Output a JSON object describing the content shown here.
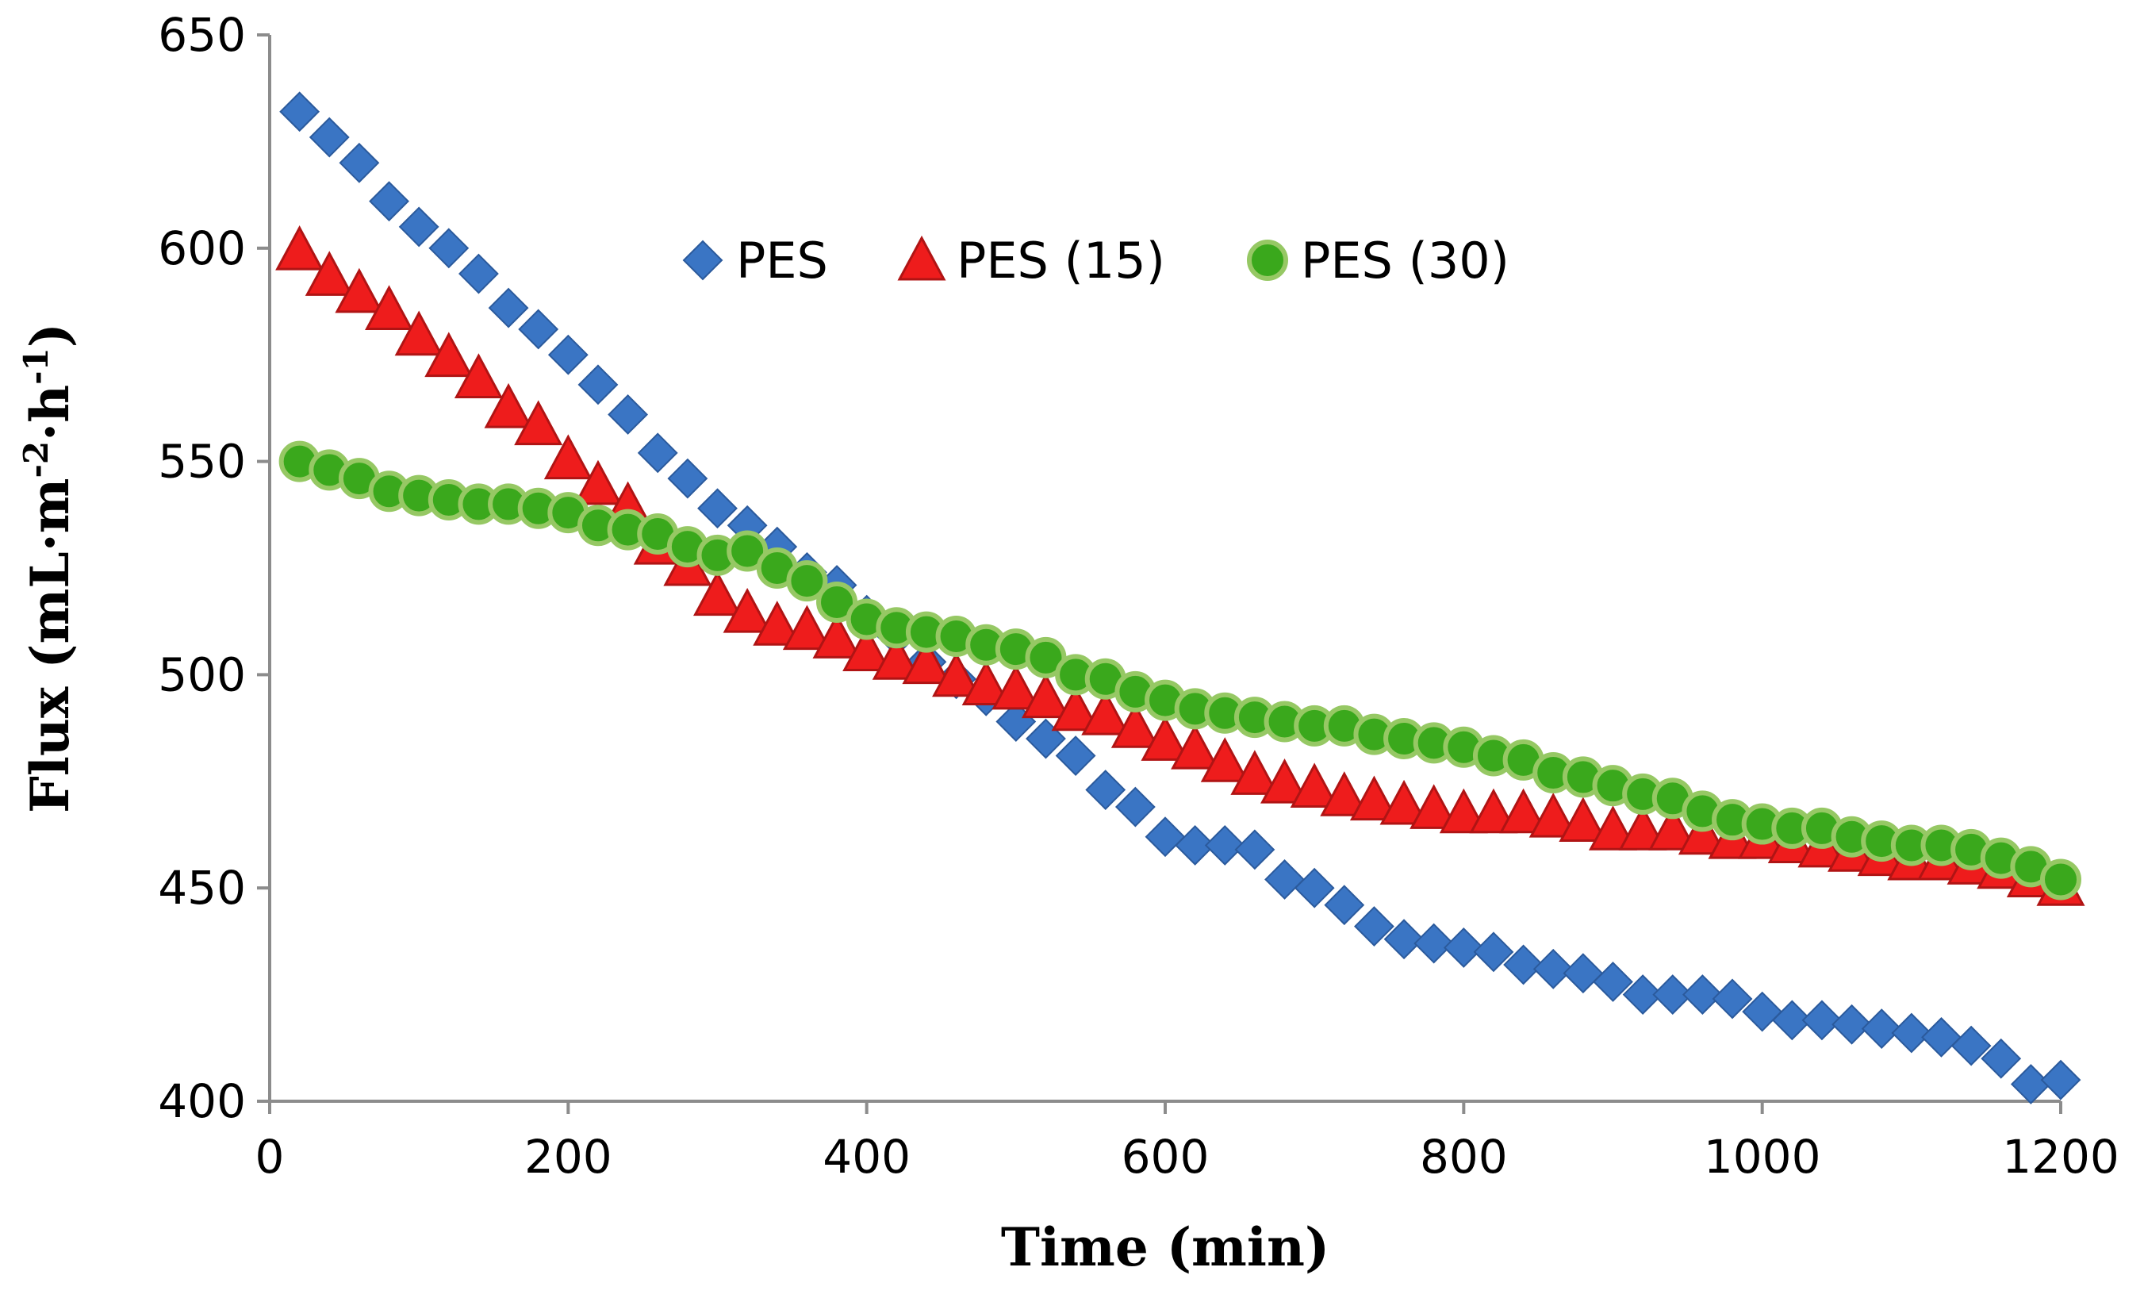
{
  "chart_data": {
    "type": "scatter",
    "title": "",
    "xlabel": "Time (min)",
    "ylabel_parts": [
      "Flux (mL·m",
      "-2",
      "·h",
      "-1",
      ")"
    ],
    "xlim": [
      0,
      1200
    ],
    "ylim": [
      400,
      650
    ],
    "xticks": [
      0,
      200,
      400,
      600,
      800,
      1000,
      1200
    ],
    "yticks": [
      400,
      450,
      500,
      550,
      600,
      650
    ],
    "grid": false,
    "legend_position": "top-center",
    "x": [
      20,
      40,
      60,
      80,
      100,
      120,
      140,
      160,
      180,
      200,
      220,
      240,
      260,
      280,
      300,
      320,
      340,
      360,
      380,
      400,
      420,
      440,
      460,
      480,
      500,
      520,
      540,
      560,
      580,
      600,
      620,
      640,
      660,
      680,
      700,
      720,
      740,
      760,
      780,
      800,
      820,
      840,
      860,
      880,
      900,
      920,
      940,
      960,
      980,
      1000,
      1020,
      1040,
      1060,
      1080,
      1100,
      1120,
      1140,
      1160,
      1180,
      1200
    ],
    "series": [
      {
        "name": "PES",
        "marker": "diamond",
        "color": "#3a75c4",
        "edge_color": "#2b5a9c",
        "values": [
          632,
          626,
          620,
          611,
          605,
          600,
          594,
          586,
          581,
          575,
          568,
          561,
          552,
          546,
          539,
          535,
          530,
          524,
          521,
          514,
          509,
          503,
          499,
          495,
          489,
          485,
          481,
          473,
          469,
          462,
          460,
          460,
          459,
          452,
          450,
          446,
          441,
          438,
          437,
          436,
          435,
          432,
          431,
          430,
          428,
          425,
          425,
          425,
          424,
          421,
          419,
          419,
          418,
          417,
          416,
          415,
          413,
          410,
          404,
          405
        ]
      },
      {
        "name": "PES (15)",
        "marker": "triangle",
        "color": "#ee1c1c",
        "edge_color": "#b01414",
        "values": [
          599,
          593,
          589,
          585,
          579,
          574,
          569,
          562,
          558,
          550,
          544,
          539,
          530,
          525,
          518,
          514,
          511,
          510,
          508,
          505,
          503,
          502,
          499,
          497,
          496,
          494,
          491,
          490,
          487,
          484,
          482,
          479,
          476,
          474,
          473,
          471,
          470,
          469,
          468,
          467,
          467,
          467,
          466,
          465,
          463,
          463,
          463,
          462,
          461,
          461,
          460,
          459,
          458,
          457,
          456,
          456,
          455,
          454,
          452,
          450
        ]
      },
      {
        "name": "PES (30)",
        "marker": "circle",
        "color": "#3aa81c",
        "edge_color": "#96c864",
        "values": [
          550,
          548,
          546,
          543,
          542,
          541,
          540,
          540,
          539,
          538,
          535,
          534,
          533,
          530,
          528,
          529,
          525,
          522,
          517,
          513,
          511,
          510,
          509,
          507,
          506,
          504,
          500,
          499,
          496,
          494,
          492,
          491,
          490,
          489,
          488,
          488,
          486,
          485,
          484,
          483,
          481,
          480,
          477,
          476,
          474,
          472,
          471,
          468,
          466,
          465,
          464,
          464,
          462,
          461,
          460,
          460,
          459,
          457,
          455,
          452
        ]
      }
    ]
  }
}
